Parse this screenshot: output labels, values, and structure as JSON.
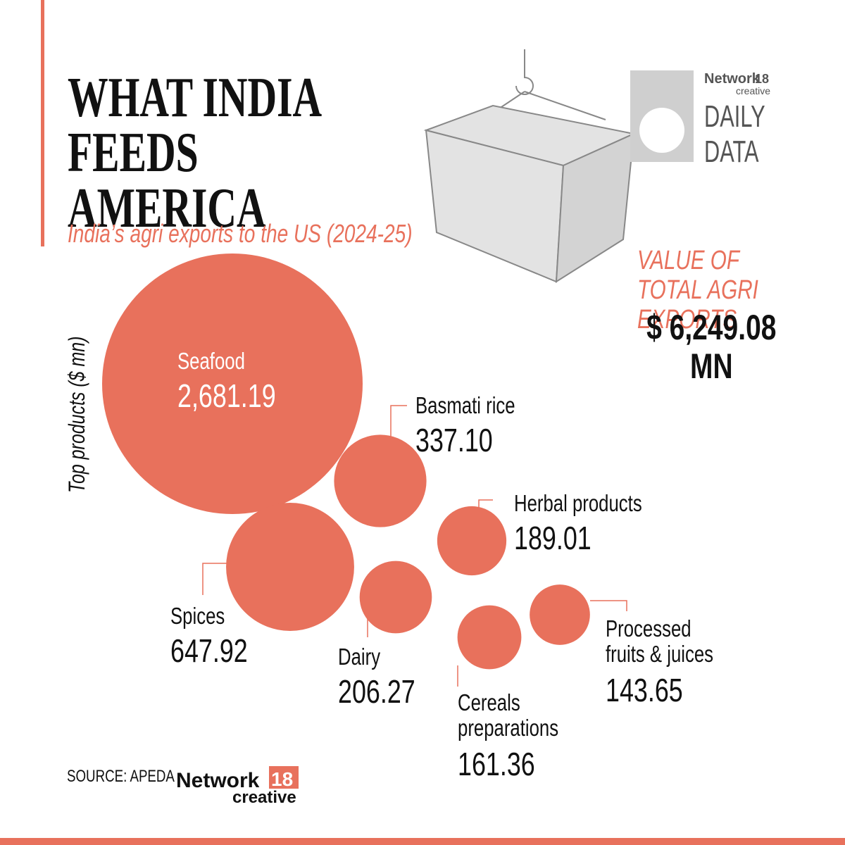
{
  "chart_data": {
    "type": "bubble",
    "title": "WHAT INDIA FEEDS AMERICA",
    "subtitle": "India’s agri exports to the US (2024-25)",
    "axis_label": "Top products ($ mn)",
    "color": "#e8715c",
    "categories": [
      "Seafood",
      "Basmati rice",
      "Herbal products",
      "Spices",
      "Dairy",
      "Cereals preparations",
      "Processed fruits & juices"
    ],
    "values": [
      2681.19,
      337.1,
      189.01,
      647.92,
      206.27,
      161.36,
      143.65
    ],
    "value_labels": [
      "2,681.19",
      "337.10",
      "189.01",
      "647.92",
      "206.27",
      "161.36",
      "143.65"
    ],
    "total": {
      "label": "VALUE OF TOTAL AGRI EXPORTS",
      "text": "$ 6,249.08 MN"
    },
    "source": "SOURCE: APEDA"
  },
  "branding": {
    "network": "Network",
    "number": "18",
    "creative": "creative",
    "series_line1": "DAILY",
    "series_line2": "DATA"
  }
}
